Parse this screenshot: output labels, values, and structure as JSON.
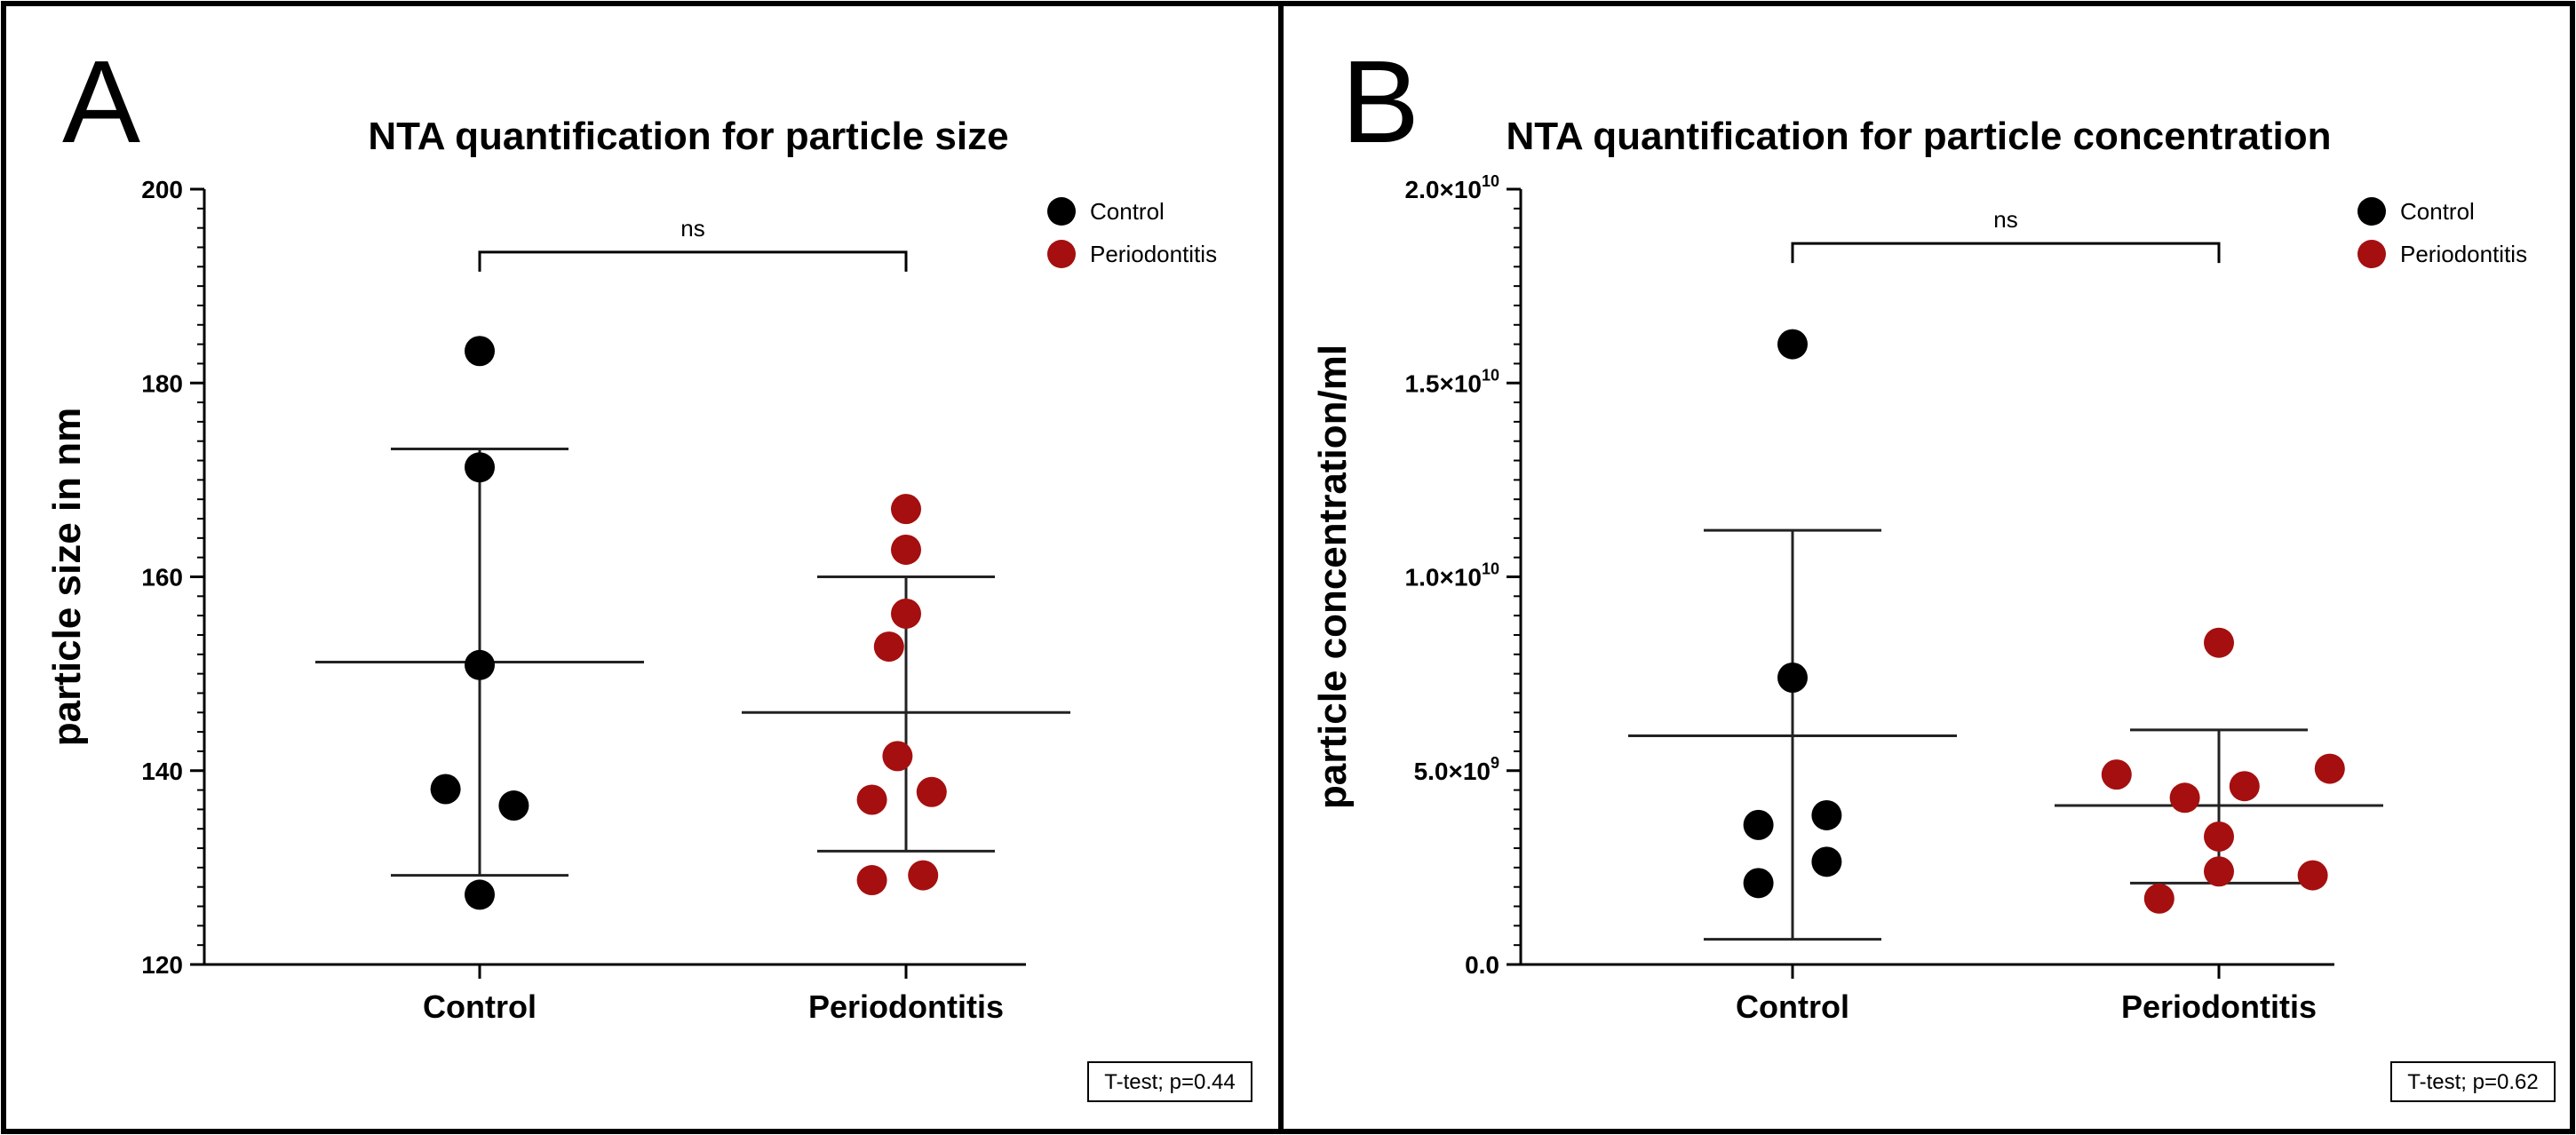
{
  "colors": {
    "control": "#000000",
    "periodontitis": "#a50f0f"
  },
  "chart_data": [
    {
      "type": "scatter",
      "panel_letter": "A",
      "title": "NTA quantification for particle size",
      "ylabel": "particle size in nm",
      "xlabel": "",
      "categories": [
        "Control",
        "Periodontitis"
      ],
      "ylim": [
        120,
        200
      ],
      "ticks": [
        {
          "value": 120,
          "label": "120"
        },
        {
          "value": 140,
          "label": "140"
        },
        {
          "value": 160,
          "label": "160"
        },
        {
          "value": 180,
          "label": "180"
        },
        {
          "value": 200,
          "label": "200"
        }
      ],
      "minor_tick_step": 2,
      "series": [
        {
          "name": "Control",
          "color": "#000000",
          "points": [
            {
              "offset": 0,
              "y": 183.3
            },
            {
              "offset": 0,
              "y": 171.3
            },
            {
              "offset": 0,
              "y": 150.9
            },
            {
              "offset": -0.08,
              "y": 138.1
            },
            {
              "offset": 0.08,
              "y": 136.4
            },
            {
              "offset": 0,
              "y": 127.2
            }
          ],
          "mean": 151.2,
          "sd_upper": 173.2,
          "sd_lower": 129.2
        },
        {
          "name": "Periodontitis",
          "color": "#a50f0f",
          "points": [
            {
              "offset": 0,
              "y": 167.0
            },
            {
              "offset": 0,
              "y": 162.8
            },
            {
              "offset": 0,
              "y": 156.2
            },
            {
              "offset": -0.04,
              "y": 152.8
            },
            {
              "offset": -0.02,
              "y": 141.5
            },
            {
              "offset": -0.08,
              "y": 137.0
            },
            {
              "offset": 0.06,
              "y": 137.8
            },
            {
              "offset": -0.08,
              "y": 128.7
            },
            {
              "offset": 0.04,
              "y": 129.2
            }
          ],
          "mean": 146.0,
          "sd_upper": 160.0,
          "sd_lower": 131.7
        }
      ],
      "significance": {
        "label": "ns",
        "y": 193.5
      },
      "legend": [
        "Control",
        "Periodontitis"
      ],
      "stat_note": "T-test; p=0.44"
    },
    {
      "type": "scatter",
      "panel_letter": "B",
      "title": "NTA quantification for particle concentration",
      "ylabel": "particle concentration/ml",
      "xlabel": "",
      "categories": [
        "Control",
        "Periodontitis"
      ],
      "ylim": [
        0,
        20000000000
      ],
      "ticks": [
        {
          "value": 0,
          "label": "0.0"
        },
        {
          "value": 5000000000,
          "label": "5.0×10",
          "exp": "9"
        },
        {
          "value": 10000000000,
          "label": "1.0×10",
          "exp": "10"
        },
        {
          "value": 15000000000,
          "label": "1.5×10",
          "exp": "10"
        },
        {
          "value": 20000000000,
          "label": "2.0×10",
          "exp": "10"
        }
      ],
      "minor_tick_step": 500000000,
      "series": [
        {
          "name": "Control",
          "color": "#000000",
          "points": [
            {
              "offset": 0,
              "y": 16000000000
            },
            {
              "offset": 0,
              "y": 7400000000
            },
            {
              "offset": -0.08,
              "y": 3600000000
            },
            {
              "offset": 0.08,
              "y": 3850000000
            },
            {
              "offset": 0.08,
              "y": 2650000000
            },
            {
              "offset": -0.08,
              "y": 2100000000
            }
          ],
          "mean": 5900000000,
          "sd_upper": 11200000000,
          "sd_lower": 650000000
        },
        {
          "name": "Periodontitis",
          "color": "#a50f0f",
          "points": [
            {
              "offset": 0,
              "y": 8300000000
            },
            {
              "offset": -0.24,
              "y": 4900000000
            },
            {
              "offset": -0.08,
              "y": 4300000000
            },
            {
              "offset": 0.06,
              "y": 4600000000
            },
            {
              "offset": 0.26,
              "y": 5050000000
            },
            {
              "offset": 0,
              "y": 3300000000
            },
            {
              "offset": 0,
              "y": 2400000000
            },
            {
              "offset": 0.22,
              "y": 2300000000
            },
            {
              "offset": -0.14,
              "y": 1700000000
            }
          ],
          "mean": 4100000000,
          "sd_upper": 6050000000,
          "sd_lower": 2100000000
        }
      ],
      "significance": {
        "label": "ns",
        "y": 18600000000
      },
      "legend": [
        "Control",
        "Periodontitis"
      ],
      "stat_note": "T-test; p=0.62"
    }
  ]
}
